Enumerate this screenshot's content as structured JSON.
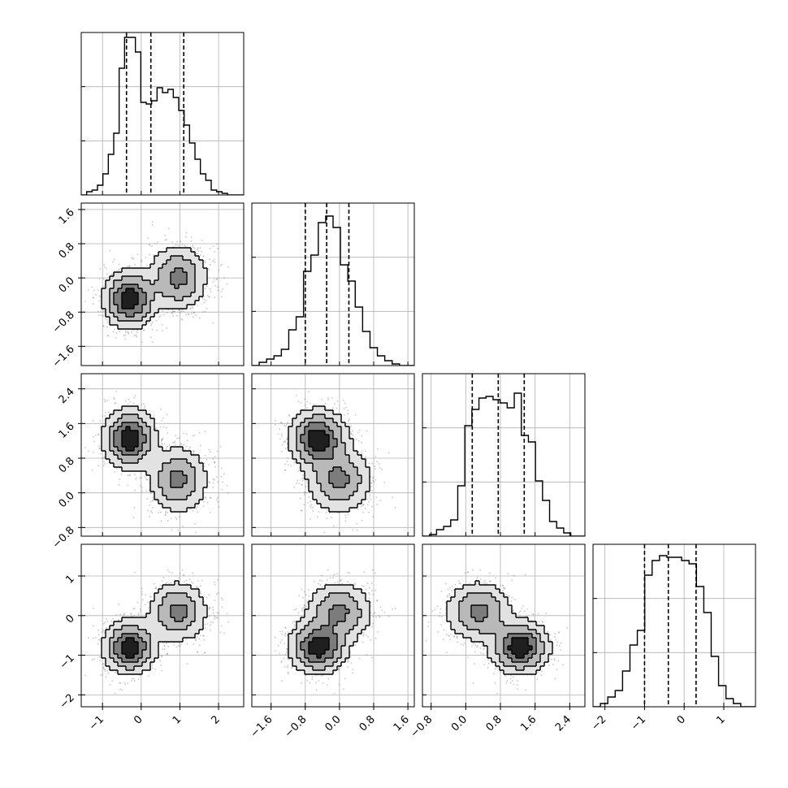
{
  "chart_data": {
    "type": "corner",
    "grid": true,
    "colors": {
      "line": "#000000",
      "scatter": "#808080",
      "grid": "#b0b0b0"
    },
    "quantiles_marked": "dashed vertical lines on each diagonal histogram",
    "parameters": [
      {
        "index": 0,
        "range": [
          -1.55,
          2.65
        ],
        "ticks": [
          -1,
          0,
          1,
          2
        ],
        "tick_labels": [
          "−1",
          "0",
          "1",
          "2"
        ],
        "quantiles": [
          -0.38,
          0.25,
          1.1
        ]
      },
      {
        "index": 1,
        "range": [
          -2.05,
          1.75
        ],
        "ticks": [
          -1.6,
          -0.8,
          0.0,
          0.8,
          1.6
        ],
        "tick_labels": [
          "−1.6",
          "−0.8",
          "0.0",
          "0.8",
          "1.6"
        ],
        "quantiles": [
          -0.8,
          -0.3,
          0.22
        ]
      },
      {
        "index": 2,
        "range": [
          -1.0,
          2.75
        ],
        "ticks": [
          -0.8,
          0.0,
          0.8,
          1.6,
          2.4
        ],
        "tick_labels": [
          "−0.8",
          "0.0",
          "0.8",
          "1.6",
          "2.4"
        ],
        "quantiles": [
          0.15,
          0.75,
          1.35
        ]
      },
      {
        "index": 3,
        "range": [
          -2.3,
          1.8
        ],
        "ticks": [
          -2,
          -1,
          0,
          1
        ],
        "tick_labels": [
          "−2",
          "−1",
          "0",
          "1"
        ],
        "quantiles": [
          -1.0,
          -0.4,
          0.3
        ]
      }
    ],
    "histograms": [
      {
        "param": 0,
        "bin_edges_range": [
          -1.55,
          2.65
        ],
        "heights": [
          0,
          0.02,
          0.03,
          0.06,
          0.13,
          0.25,
          0.38,
          0.78,
          0.97,
          0.97,
          0.88,
          0.57,
          0.56,
          0.58,
          0.66,
          0.63,
          0.65,
          0.6,
          0.52,
          0.43,
          0.32,
          0.22,
          0.13,
          0.09,
          0.03,
          0.02,
          0.01,
          0,
          0,
          0
        ]
      },
      {
        "param": 1,
        "bin_edges_range": [
          -2.05,
          1.75
        ],
        "heights": [
          0,
          0.02,
          0.04,
          0.06,
          0.1,
          0.22,
          0.3,
          0.58,
          0.68,
          0.88,
          0.92,
          0.85,
          0.62,
          0.52,
          0.36,
          0.21,
          0.11,
          0.06,
          0.03,
          0.01,
          0,
          0
        ]
      },
      {
        "param": 2,
        "bin_edges_range": [
          -1.0,
          2.75
        ],
        "heights": [
          0,
          0.01,
          0.04,
          0.06,
          0.1,
          0.31,
          0.68,
          0.78,
          0.85,
          0.86,
          0.84,
          0.82,
          0.79,
          0.88,
          0.62,
          0.58,
          0.34,
          0.22,
          0.09,
          0.05,
          0.02,
          0,
          0
        ]
      },
      {
        "param": 3,
        "bin_edges_range": [
          -2.3,
          1.8
        ],
        "heights": [
          0,
          0.02,
          0.06,
          0.1,
          0.22,
          0.38,
          0.47,
          0.81,
          0.9,
          0.93,
          0.92,
          0.92,
          0.9,
          0.88,
          0.74,
          0.58,
          0.31,
          0.13,
          0.05,
          0.02,
          0,
          0
        ]
      }
    ],
    "mixture_components": [
      {
        "weight": 0.55,
        "mean": [
          -0.3,
          -0.5,
          1.25,
          -0.8
        ],
        "sd": [
          0.35,
          0.35,
          0.35,
          0.35
        ]
      },
      {
        "weight": 0.45,
        "mean": [
          0.95,
          0.0,
          0.3,
          0.1
        ],
        "sd": [
          0.4,
          0.4,
          0.4,
          0.4
        ]
      }
    ]
  }
}
